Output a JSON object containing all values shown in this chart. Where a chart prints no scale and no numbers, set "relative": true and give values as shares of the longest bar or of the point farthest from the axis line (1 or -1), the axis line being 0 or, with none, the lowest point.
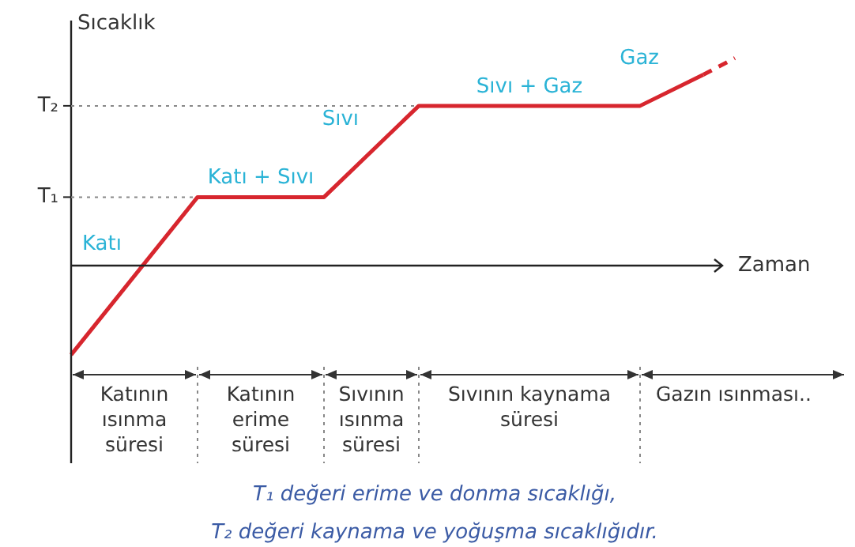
{
  "chart_data": {
    "type": "line",
    "relative": true,
    "ylabel": "Sıcaklık",
    "xlabel": "Zaman",
    "legend": false,
    "marker": "none",
    "categories": [
      null,
      null,
      null,
      null,
      null,
      null,
      null,
      null,
      null,
      null,
      null,
      null,
      null,
      null,
      null,
      null,
      null,
      null,
      null,
      null,
      null,
      null
    ],
    "series": [
      {
        "color": "#d7262e",
        "line_style": "solid",
        "values": [
          -0.43,
          null,
          null,
          null,
          0.33,
          null,
          null,
          null,
          0.33,
          null,
          null,
          0.77,
          null,
          null,
          null,
          null,
          null,
          null,
          0.77,
          null,
          0.92,
          null
        ]
      },
      {
        "color": "#d7262e",
        "line_style": "dashed",
        "values": [
          null,
          null,
          null,
          null,
          null,
          null,
          null,
          null,
          null,
          null,
          null,
          null,
          null,
          null,
          null,
          null,
          null,
          null,
          null,
          null,
          0.92,
          1
        ]
      }
    ],
    "ref_lines": [
      {
        "axis": "y",
        "value": 0.33,
        "label": "T₁",
        "line_style": "dotted",
        "color": "#888888"
      },
      {
        "axis": "y",
        "value": 0.77,
        "label": "T₂",
        "line_style": "dotted",
        "color": "#888888"
      }
    ],
    "annotations": [
      "Katı",
      "Katı + Sıvı",
      "Sıvı",
      "Sıvı + Gaz",
      "Gaz",
      "Katının ısınma süresi",
      "Katının erime süresi",
      "Sıvının ısınma süresi",
      "Sıvının kaynama süresi",
      "Gazın ısınması..",
      "T₁ değeri erime ve donma sıcaklığı,",
      "T₂ değeri kaynama ve yoğuşma sıcaklığıdır."
    ]
  }
}
